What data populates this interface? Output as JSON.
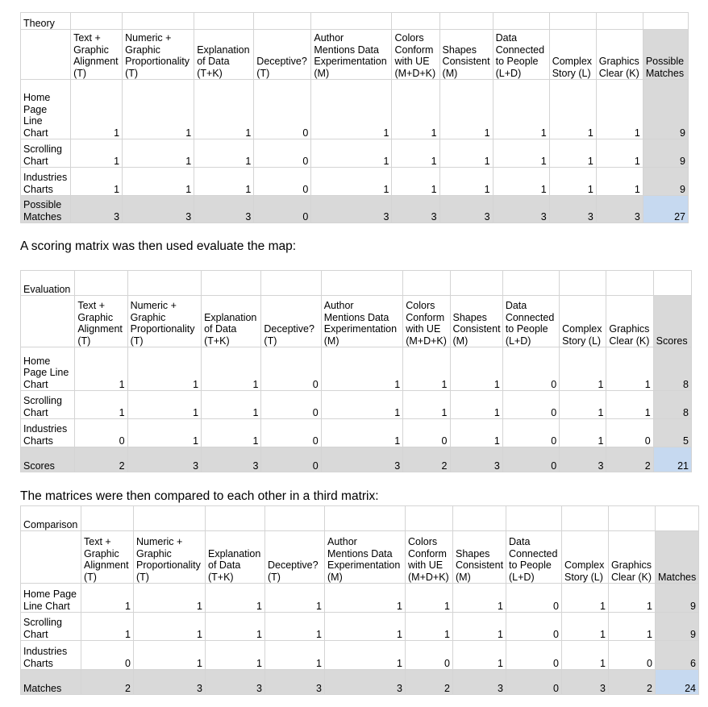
{
  "columns": [
    "Text +\nGraphic\nAlignment\n(T)",
    "Numeric +\nGraphic\nProportionality\n(T)",
    "Explanation\nof Data\n(T+K)",
    "Deceptive?\n(T)",
    "Author\nMentions Data\nExperimentation\n(M)",
    "Colors\nConform\nwith UE\n(M+D+K)",
    "Shapes\nConsistent\n(M)",
    "Data\nConnected\nto People\n(L+D)",
    "Complex\nStory (L)",
    "Graphics\nClear (K)"
  ],
  "tables": [
    {
      "title": "Theory",
      "total_header": "Possible\nMatches",
      "rows": [
        {
          "label": "Home\nPage\nLine\nChart",
          "values": [
            "1",
            "1",
            "1",
            "0",
            "1",
            "1",
            "1",
            "1",
            "1",
            "1"
          ],
          "total": "9"
        },
        {
          "label": "Scrolling\nChart",
          "values": [
            "1",
            "1",
            "1",
            "0",
            "1",
            "1",
            "1",
            "1",
            "1",
            "1"
          ],
          "total": "9"
        },
        {
          "label": "Industries\nCharts",
          "values": [
            "1",
            "1",
            "1",
            "0",
            "1",
            "1",
            "1",
            "1",
            "1",
            "1"
          ],
          "total": "9"
        }
      ],
      "footer": {
        "label": "Possible\nMatches",
        "values": [
          "3",
          "3",
          "3",
          "0",
          "3",
          "3",
          "3",
          "3",
          "3",
          "3"
        ],
        "total": "27"
      }
    },
    {
      "title": "Evaluation",
      "total_header": "Scores",
      "rows": [
        {
          "label": "Home\nPage Line\nChart",
          "values": [
            "1",
            "1",
            "1",
            "0",
            "1",
            "1",
            "1",
            "0",
            "1",
            "1"
          ],
          "total": "8"
        },
        {
          "label": "Scrolling\nChart",
          "values": [
            "1",
            "1",
            "1",
            "0",
            "1",
            "1",
            "1",
            "0",
            "1",
            "1"
          ],
          "total": "8"
        },
        {
          "label": "Industries\nCharts",
          "values": [
            "0",
            "1",
            "1",
            "0",
            "1",
            "0",
            "1",
            "0",
            "1",
            "0"
          ],
          "total": "5"
        }
      ],
      "footer": {
        "label": "Scores",
        "values": [
          "2",
          "3",
          "3",
          "0",
          "3",
          "2",
          "3",
          "0",
          "3",
          "2"
        ],
        "total": "21"
      }
    },
    {
      "title": "Comparison",
      "total_header": "Matches",
      "rows": [
        {
          "label": "Home Page\nLine Chart",
          "values": [
            "1",
            "1",
            "1",
            "1",
            "1",
            "1",
            "1",
            "0",
            "1",
            "1"
          ],
          "total": "9"
        },
        {
          "label": "Scrolling\nChart",
          "values": [
            "1",
            "1",
            "1",
            "1",
            "1",
            "1",
            "1",
            "0",
            "1",
            "1"
          ],
          "total": "9"
        },
        {
          "label": "Industries\nCharts",
          "values": [
            "0",
            "1",
            "1",
            "1",
            "1",
            "0",
            "1",
            "0",
            "1",
            "0"
          ],
          "total": "6"
        }
      ],
      "footer": {
        "label": "Matches",
        "values": [
          "2",
          "3",
          "3",
          "3",
          "3",
          "2",
          "3",
          "0",
          "3",
          "2"
        ],
        "total": "24"
      }
    }
  ],
  "paragraphs": {
    "after_theory": "A scoring matrix was then used evaluate the map:",
    "after_evaluation": "The matrices were then compared to each other in a third matrix:"
  }
}
